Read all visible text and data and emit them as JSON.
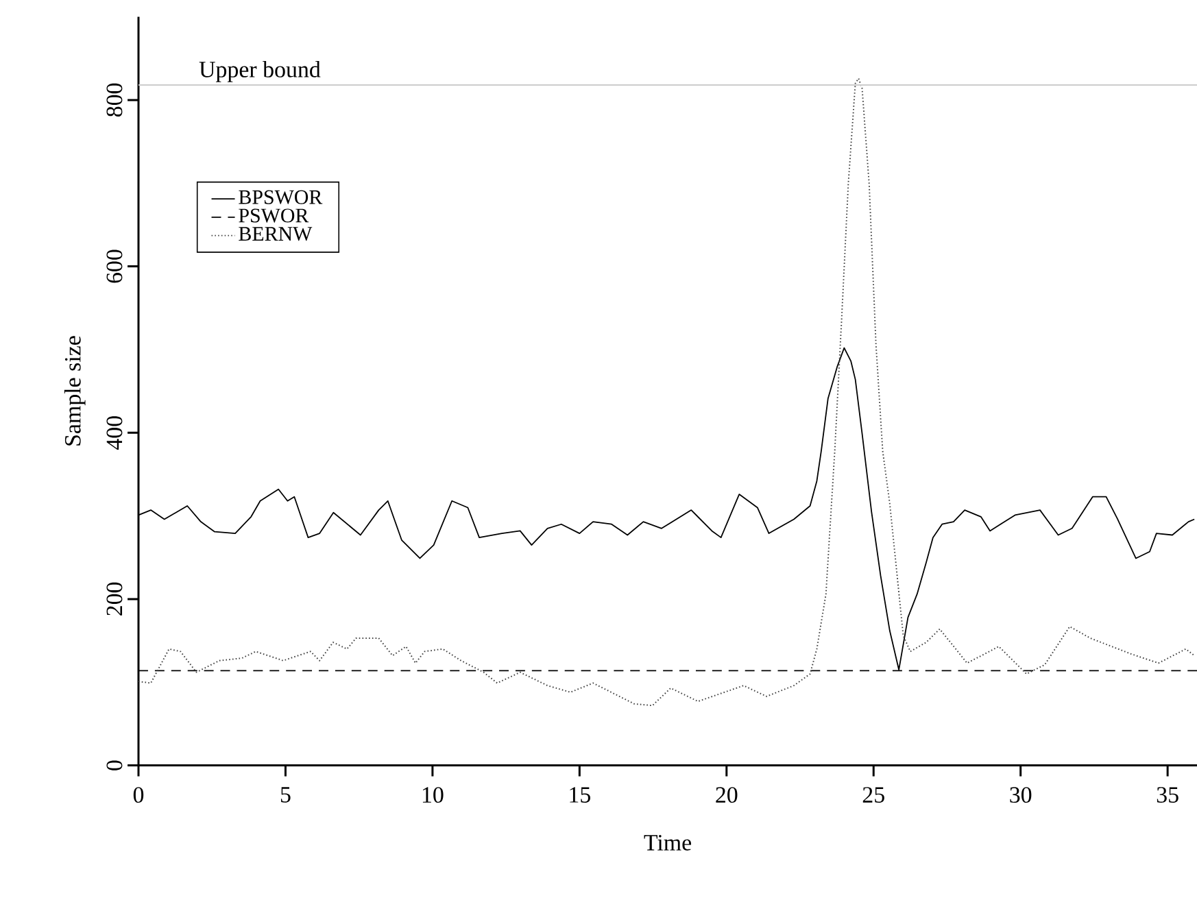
{
  "chart_data": {
    "type": "line",
    "xlabel": "Time",
    "ylabel": "Sample size",
    "xlim": [
      0,
      36
    ],
    "ylim": [
      0,
      900
    ],
    "xticks": [
      0,
      5,
      10,
      15,
      20,
      25,
      30,
      35
    ],
    "yticks": [
      0,
      200,
      400,
      600,
      800
    ],
    "legend": "top left",
    "grid": false,
    "marker": "none",
    "ref_lines": [
      {
        "axis": "y",
        "value": 818,
        "label": "Upper bound",
        "color": "#cccccc",
        "line_style": "solid"
      }
    ],
    "series": [
      {
        "name": "BPSWOR",
        "color": "#000000",
        "line_style": "solid",
        "x": [
          0,
          0.42,
          0.88,
          1.66,
          2.12,
          2.59,
          3.29,
          3.83,
          4.14,
          4.76,
          5.07,
          5.3,
          5.77,
          6.16,
          6.63,
          7.55,
          8.17,
          8.48,
          8.95,
          9.57,
          10.04,
          10.66,
          11.2,
          11.59,
          12.36,
          12.98,
          13.37,
          13.91,
          14.38,
          15.0,
          15.46,
          16.09,
          16.63,
          17.17,
          17.79,
          18.8,
          19.5,
          19.81,
          20.43,
          21.05,
          21.44,
          22.29,
          22.84,
          23.07,
          23.22,
          23.45,
          23.76,
          24.0,
          24.23,
          24.38,
          24.61,
          24.93,
          25.24,
          25.55,
          25.86,
          26.17,
          26.48,
          26.79,
          27.02,
          27.33,
          27.72,
          28.1,
          28.65,
          28.96,
          29.81,
          30.66,
          31.28,
          31.75,
          32.45,
          32.91,
          33.3,
          33.92,
          34.39,
          34.62,
          35.16,
          35.71,
          35.91
        ],
        "values": [
          301,
          307,
          296,
          312,
          293,
          281,
          279,
          299,
          318,
          332,
          318,
          323,
          274,
          279,
          304,
          277,
          307,
          318,
          271,
          249,
          265,
          318,
          310,
          274,
          279,
          282,
          265,
          285,
          290,
          279,
          293,
          290,
          277,
          293,
          285,
          307,
          282,
          274,
          326,
          310,
          279,
          296,
          312,
          342,
          378,
          441,
          479,
          502,
          486,
          464,
          399,
          305,
          228,
          162,
          115,
          178,
          206,
          244,
          274,
          290,
          293,
          307,
          299,
          282,
          301,
          307,
          277,
          285,
          323,
          323,
          296,
          249,
          257,
          279,
          277,
          293,
          296
        ]
      },
      {
        "name": "PSWOR",
        "color": "#000000",
        "line_style": "dashed",
        "x": [
          0,
          36
        ],
        "values": [
          114,
          114
        ]
      },
      {
        "name": "BERNW",
        "color": "#404040",
        "line_style": "dotted",
        "x": [
          0,
          0.42,
          1.04,
          1.43,
          1.97,
          2.75,
          3.52,
          3.99,
          4.92,
          5.85,
          6.16,
          6.62,
          7.09,
          7.4,
          8.17,
          8.64,
          9.1,
          9.42,
          9.73,
          10.35,
          10.97,
          11.74,
          12.2,
          12.98,
          13.91,
          14.69,
          15.46,
          16.86,
          17.48,
          18.1,
          19.03,
          20.58,
          21.36,
          22.29,
          22.84,
          23.07,
          23.38,
          23.68,
          23.91,
          24.14,
          24.38,
          24.49,
          24.61,
          24.85,
          25.08,
          25.31,
          25.55,
          26.01,
          26.25,
          26.79,
          27.25,
          28.18,
          29.26,
          30.2,
          30.82,
          31.67,
          32.37,
          33.76,
          34.69,
          35.62,
          35.91
        ],
        "values": [
          101,
          99,
          140,
          137,
          112,
          126,
          129,
          137,
          126,
          137,
          126,
          148,
          140,
          153,
          153,
          132,
          143,
          123,
          137,
          140,
          126,
          112,
          99,
          112,
          96,
          88,
          99,
          74,
          72,
          93,
          77,
          96,
          83,
          96,
          110,
          140,
          206,
          378,
          534,
          699,
          820,
          826,
          814,
          699,
          507,
          378,
          315,
          156,
          137,
          148,
          164,
          123,
          143,
          110,
          121,
          167,
          153,
          134,
          123,
          140,
          132
        ]
      }
    ]
  }
}
